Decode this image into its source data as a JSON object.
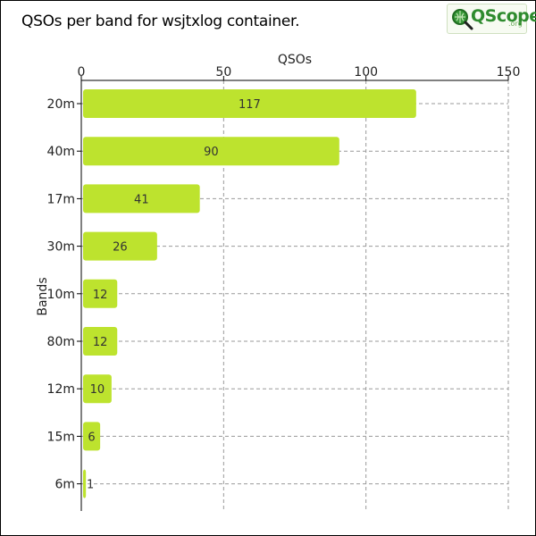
{
  "header": {
    "title": "QSOs per band for wsjtxlog container.",
    "logo_text": "QScope",
    "logo_suffix": ".org"
  },
  "colors": {
    "bar": "#bde32e",
    "grid": "#999999",
    "axis": "#000000",
    "logo_green": "#2e8b2e"
  },
  "chart_data": {
    "type": "bar",
    "orientation": "horizontal",
    "title": "QSOs per band for wsjtxlog container.",
    "xlabel": "QSOs",
    "ylabel": "Bands",
    "xlim": [
      0,
      150
    ],
    "xticks": [
      0,
      50,
      100,
      150
    ],
    "x_axis_position": "top",
    "grid": true,
    "categories": [
      "20m",
      "40m",
      "17m",
      "30m",
      "10m",
      "80m",
      "12m",
      "15m",
      "6m"
    ],
    "values": [
      117,
      90,
      41,
      26,
      12,
      12,
      10,
      6,
      1
    ],
    "data_labels": [
      "117",
      "90",
      "41",
      "26",
      "12",
      "12",
      "10",
      "6",
      "1"
    ]
  }
}
